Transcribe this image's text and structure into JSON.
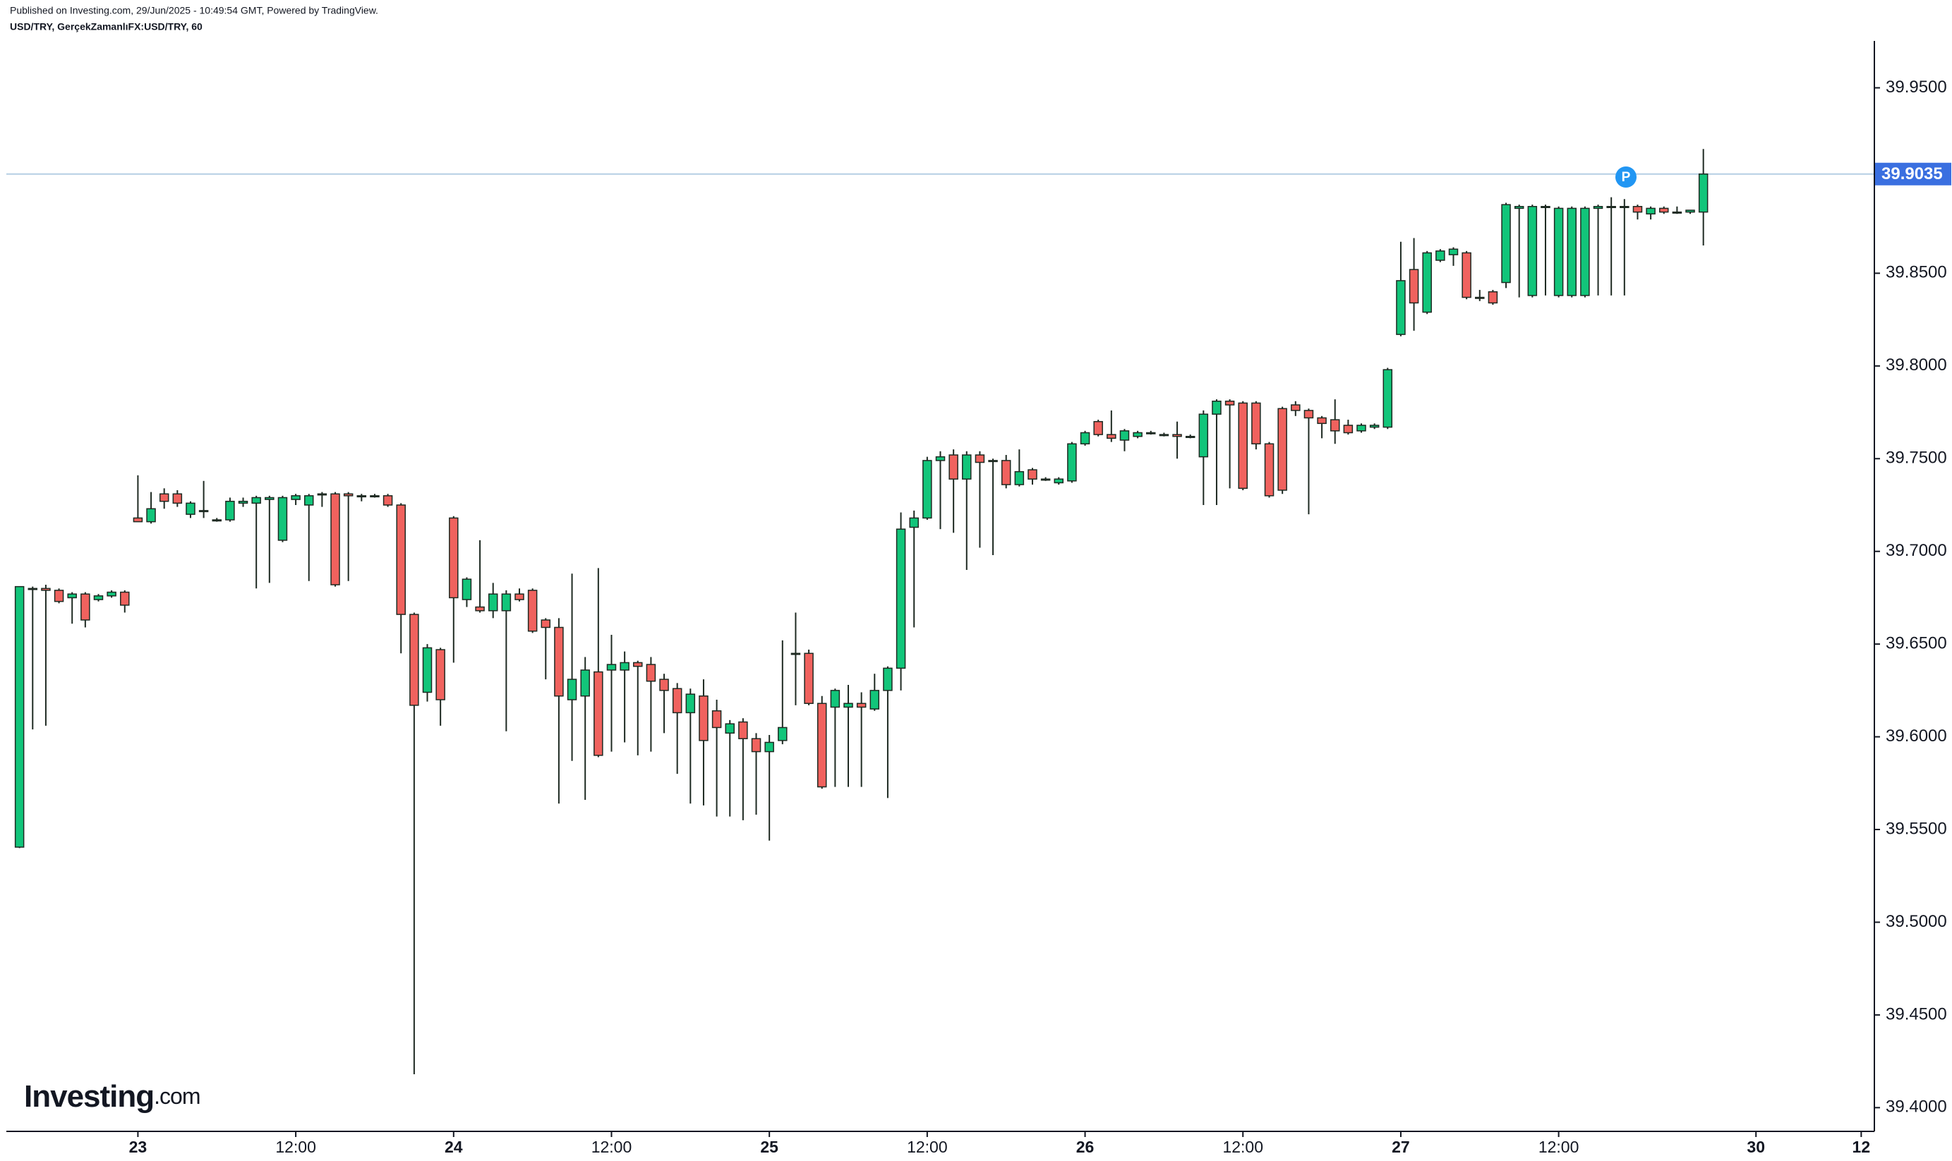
{
  "header": {
    "published": "Published on Investing.com, 29/Jun/2025 - 10:49:54 GMT, Powered by TradingView.",
    "symbol": "USD/TRY, GerçekZamanlıFX:USD/TRY, 60"
  },
  "logo": {
    "name": "Investing",
    "suffix": ".com"
  },
  "marker": "P",
  "chart_data": {
    "type": "candlestick",
    "up_color": "#12c57a",
    "down_color": "#f0625e",
    "last_price": 39.9035,
    "last_price_color": "#3a6fe0",
    "xlim": [
      -10,
      132
    ],
    "xticks": [
      {
        "value": 0,
        "label": "23"
      },
      {
        "value": 12,
        "label": "12:00"
      },
      {
        "value": 24,
        "label": "24"
      },
      {
        "value": 36,
        "label": "12:00"
      },
      {
        "value": 48,
        "label": "25"
      },
      {
        "value": 60,
        "label": "12:00"
      },
      {
        "value": 72,
        "label": "26"
      },
      {
        "value": 84,
        "label": "12:00"
      },
      {
        "value": 96,
        "label": "27"
      },
      {
        "value": 108,
        "label": "12:00"
      },
      {
        "value": 123,
        "label": "30"
      },
      {
        "value": 131,
        "label": "12"
      }
    ],
    "ylim": [
      39.3872,
      39.9753
    ],
    "yticks": [
      {
        "value": 39.4,
        "label": "39.4000"
      },
      {
        "value": 39.45,
        "label": "39.4500"
      },
      {
        "value": 39.5,
        "label": "39.5000"
      },
      {
        "value": 39.55,
        "label": "39.5500"
      },
      {
        "value": 39.6,
        "label": "39.6000"
      },
      {
        "value": 39.65,
        "label": "39.6500"
      },
      {
        "value": 39.7,
        "label": "39.7000"
      },
      {
        "value": 39.75,
        "label": "39.7500"
      },
      {
        "value": 39.8,
        "label": "39.8000"
      },
      {
        "value": 39.85,
        "label": "39.8500"
      },
      {
        "value": 39.9,
        "label": "39.9000"
      },
      {
        "value": 39.95,
        "label": "39.9500"
      }
    ],
    "x": [
      -9,
      -8,
      -7,
      -6,
      -5,
      -4,
      -3,
      -2,
      -1,
      0,
      1,
      2,
      3,
      4,
      5,
      6,
      7,
      8,
      9,
      10,
      11,
      12,
      13,
      14,
      15,
      16,
      17,
      18,
      19,
      20,
      21,
      22,
      23,
      24,
      25,
      26,
      27,
      28,
      29,
      30,
      31,
      32,
      33,
      34,
      35,
      36,
      37,
      38,
      39,
      40,
      41,
      42,
      43,
      44,
      45,
      46,
      47,
      48,
      49,
      50,
      51,
      52,
      53,
      54,
      55,
      56,
      57,
      58,
      59,
      60,
      61,
      62,
      63,
      64,
      65,
      66,
      67,
      68,
      69,
      70,
      71,
      72,
      73,
      74,
      75,
      76,
      77,
      78,
      79,
      80,
      81,
      82,
      83,
      84,
      85,
      86,
      87,
      88,
      89,
      90,
      91,
      92,
      93,
      94,
      95,
      96,
      97,
      98,
      99,
      100,
      101,
      102,
      103,
      104,
      105,
      106,
      107,
      108,
      109,
      110,
      111,
      112,
      113,
      114,
      115,
      116,
      117,
      118,
      119
    ],
    "open": [
      39.5405,
      39.68,
      39.68,
      39.679,
      39.675,
      39.677,
      39.674,
      39.676,
      39.678,
      39.718,
      39.716,
      39.731,
      39.731,
      39.72,
      39.722,
      39.717,
      39.717,
      39.726,
      39.726,
      39.728,
      39.706,
      39.728,
      39.725,
      39.731,
      39.731,
      39.731,
      39.73,
      39.73,
      39.73,
      39.725,
      39.666,
      39.624,
      39.647,
      39.718,
      39.674,
      39.67,
      39.668,
      39.668,
      39.677,
      39.679,
      39.663,
      39.659,
      39.62,
      39.622,
      39.635,
      39.636,
      39.636,
      39.64,
      39.639,
      39.631,
      39.626,
      39.613,
      39.622,
      39.614,
      39.602,
      39.608,
      39.599,
      39.592,
      39.598,
      39.645,
      39.645,
      39.618,
      39.616,
      39.616,
      39.618,
      39.615,
      39.625,
      39.637,
      39.713,
      39.718,
      39.749,
      39.752,
      39.739,
      39.752,
      39.749,
      39.749,
      39.736,
      39.744,
      39.739,
      39.737,
      39.738,
      39.758,
      39.77,
      39.763,
      39.76,
      39.762,
      39.764,
      39.763,
      39.763,
      39.762,
      39.751,
      39.774,
      39.781,
      39.78,
      39.78,
      39.758,
      39.777,
      39.779,
      39.776,
      39.772,
      39.771,
      39.768,
      39.765,
      39.767,
      39.767,
      39.817,
      39.852,
      39.829,
      39.857,
      39.86,
      39.861,
      39.837,
      39.84,
      39.845,
      39.885,
      39.838,
      39.886,
      39.838,
      39.838,
      39.838,
      39.885,
      39.886,
      39.886,
      39.886,
      39.882,
      39.885,
      39.883,
      39.883,
      39.883
    ],
    "high": [
      39.681,
      39.681,
      39.682,
      39.68,
      39.678,
      39.678,
      39.677,
      39.679,
      39.679,
      39.741,
      39.732,
      39.734,
      39.733,
      39.727,
      39.738,
      39.718,
      39.729,
      39.729,
      39.73,
      39.73,
      39.73,
      39.731,
      39.731,
      39.732,
      39.732,
      39.732,
      39.731,
      39.731,
      39.731,
      39.726,
      39.667,
      39.65,
      39.648,
      39.719,
      39.686,
      39.706,
      39.683,
      39.679,
      39.68,
      39.68,
      39.664,
      39.664,
      39.688,
      39.643,
      39.691,
      39.655,
      39.646,
      39.641,
      39.643,
      39.634,
      39.629,
      39.626,
      39.631,
      39.62,
      39.609,
      39.61,
      39.602,
      39.601,
      39.652,
      39.667,
      39.647,
      39.622,
      39.626,
      39.628,
      39.624,
      39.634,
      39.638,
      39.721,
      39.722,
      39.751,
      39.754,
      39.755,
      39.754,
      39.754,
      39.75,
      39.752,
      39.755,
      39.745,
      39.74,
      39.74,
      39.759,
      39.765,
      39.771,
      39.776,
      39.766,
      39.765,
      39.765,
      39.764,
      39.77,
      39.763,
      39.776,
      39.782,
      39.782,
      39.781,
      39.781,
      39.759,
      39.778,
      39.781,
      39.777,
      39.773,
      39.782,
      39.771,
      39.769,
      39.769,
      39.799,
      39.867,
      39.869,
      39.862,
      39.863,
      39.864,
      39.862,
      39.841,
      39.841,
      39.888,
      39.887,
      39.887,
      39.887,
      39.886,
      39.886,
      39.886,
      39.887,
      39.891,
      39.89,
      39.887,
      39.886,
      39.886,
      39.886,
      39.884,
      39.917
    ],
    "low": [
      39.54,
      39.604,
      39.606,
      39.672,
      39.661,
      39.659,
      39.673,
      39.675,
      39.667,
      39.716,
      39.715,
      39.723,
      39.724,
      39.718,
      39.718,
      39.716,
      39.716,
      39.724,
      39.68,
      39.683,
      39.705,
      39.725,
      39.684,
      39.724,
      39.681,
      39.684,
      39.727,
      39.729,
      39.724,
      39.645,
      39.418,
      39.619,
      39.606,
      39.64,
      39.67,
      39.667,
      39.664,
      39.603,
      39.673,
      39.656,
      39.631,
      39.564,
      39.587,
      39.566,
      39.589,
      39.592,
      39.597,
      39.59,
      39.592,
      39.602,
      39.58,
      39.564,
      39.563,
      39.557,
      39.557,
      39.555,
      39.558,
      39.544,
      39.596,
      39.617,
      39.617,
      39.572,
      39.573,
      39.573,
      39.573,
      39.614,
      39.567,
      39.625,
      39.659,
      39.717,
      39.712,
      39.71,
      39.69,
      39.702,
      39.698,
      39.734,
      39.735,
      39.736,
      39.738,
      39.736,
      39.737,
      39.757,
      39.762,
      39.759,
      39.754,
      39.761,
      39.763,
      39.762,
      39.75,
      39.761,
      39.725,
      39.725,
      39.734,
      39.733,
      39.755,
      39.729,
      39.731,
      39.773,
      39.72,
      39.761,
      39.758,
      39.763,
      39.764,
      39.766,
      39.766,
      39.816,
      39.819,
      39.828,
      39.856,
      39.854,
      39.836,
      39.835,
      39.833,
      39.842,
      39.837,
      39.837,
      39.838,
      39.837,
      39.837,
      39.837,
      39.838,
      39.838,
      39.838,
      39.879,
      39.879,
      39.882,
      39.882,
      39.882,
      39.865
    ],
    "close": [
      39.681,
      39.68,
      39.679,
      39.673,
      39.677,
      39.663,
      39.676,
      39.678,
      39.671,
      39.716,
      39.723,
      39.727,
      39.726,
      39.726,
      39.722,
      39.717,
      39.727,
      39.727,
      39.729,
      39.729,
      39.729,
      39.73,
      39.73,
      39.731,
      39.682,
      39.73,
      39.73,
      39.73,
      39.725,
      39.666,
      39.617,
      39.648,
      39.62,
      39.675,
      39.685,
      39.668,
      39.677,
      39.677,
      39.674,
      39.657,
      39.659,
      39.622,
      39.631,
      39.636,
      39.59,
      39.639,
      39.64,
      39.638,
      39.63,
      39.625,
      39.613,
      39.623,
      39.598,
      39.605,
      39.607,
      39.599,
      39.592,
      39.597,
      39.605,
      39.645,
      39.618,
      39.573,
      39.625,
      39.618,
      39.616,
      39.625,
      39.637,
      39.712,
      39.718,
      39.749,
      39.751,
      39.739,
      39.752,
      39.748,
      39.749,
      39.736,
      39.743,
      39.739,
      39.739,
      39.739,
      39.758,
      39.764,
      39.763,
      39.761,
      39.765,
      39.764,
      39.764,
      39.763,
      39.762,
      39.762,
      39.774,
      39.781,
      39.779,
      39.734,
      39.758,
      39.73,
      39.733,
      39.776,
      39.772,
      39.769,
      39.765,
      39.764,
      39.768,
      39.768,
      39.798,
      39.846,
      39.834,
      39.861,
      39.862,
      39.863,
      39.837,
      39.837,
      39.834,
      39.887,
      39.886,
      39.886,
      39.886,
      39.885,
      39.885,
      39.885,
      39.886,
      39.886,
      39.886,
      39.883,
      39.885,
      39.883,
      39.883,
      39.884,
      39.9035
    ]
  }
}
